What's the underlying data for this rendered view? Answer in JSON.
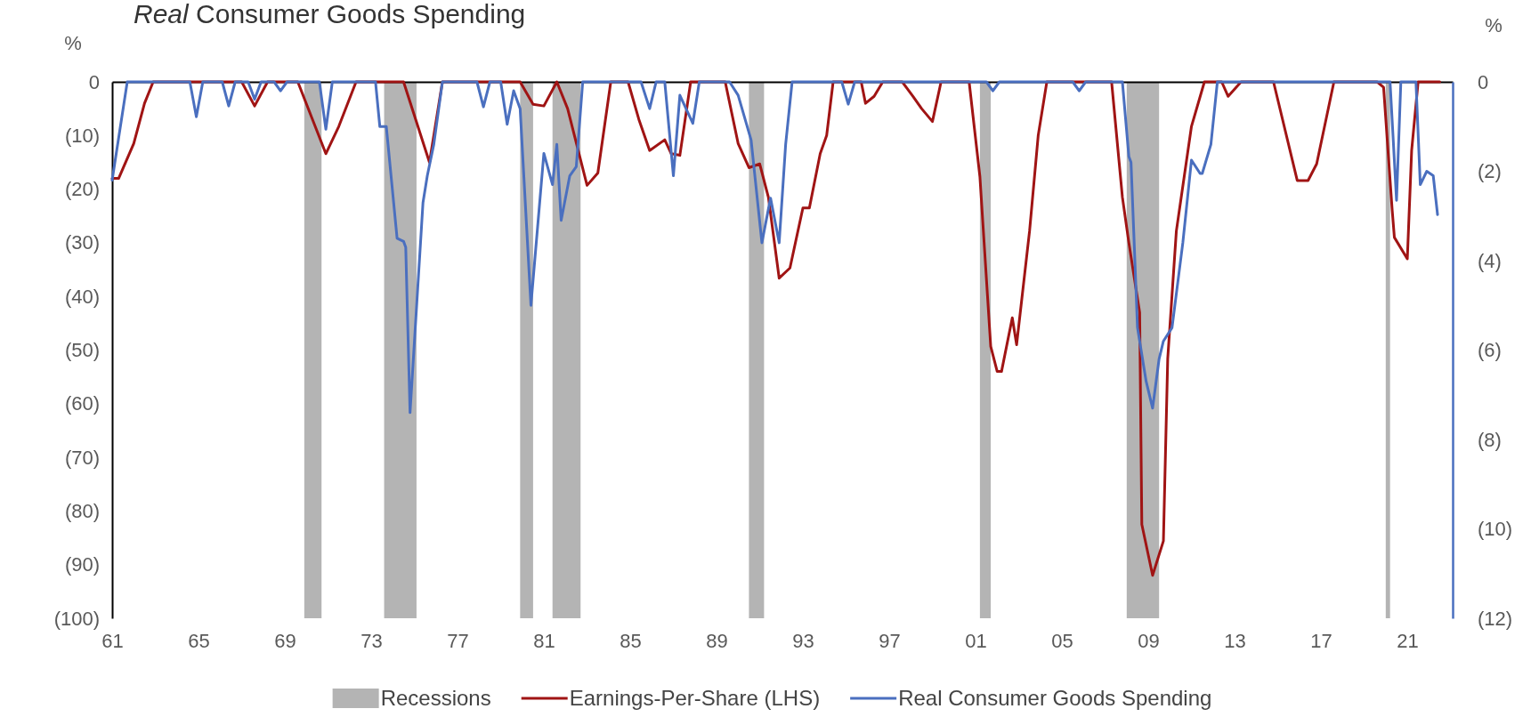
{
  "chart_data": {
    "type": "line",
    "title": "Real Consumer Goods Spending",
    "ylabel": "%",
    "y2label": "%",
    "xlim": [
      1961,
      2023.1
    ],
    "xticks": [
      {
        "value": 1961,
        "label": "61"
      },
      {
        "value": 1965,
        "label": "65"
      },
      {
        "value": 1969,
        "label": "69"
      },
      {
        "value": 1973,
        "label": "73"
      },
      {
        "value": 1977,
        "label": "77"
      },
      {
        "value": 1981,
        "label": "81"
      },
      {
        "value": 1985,
        "label": "85"
      },
      {
        "value": 1989,
        "label": "89"
      },
      {
        "value": 1993,
        "label": "93"
      },
      {
        "value": 1997,
        "label": "97"
      },
      {
        "value": 2001,
        "label": "01"
      },
      {
        "value": 2005,
        "label": "05"
      },
      {
        "value": 2009,
        "label": "09"
      },
      {
        "value": 2013,
        "label": "13"
      },
      {
        "value": 2017,
        "label": "17"
      },
      {
        "value": 2021,
        "label": "21"
      }
    ],
    "ylim": [
      -100,
      0
    ],
    "yticks": [
      {
        "value": -100,
        "label": "(100)"
      },
      {
        "value": -90,
        "label": "(90)"
      },
      {
        "value": -80,
        "label": "(80)"
      },
      {
        "value": -70,
        "label": "(70)"
      },
      {
        "value": -60,
        "label": "(60)"
      },
      {
        "value": -50,
        "label": "(50)"
      },
      {
        "value": -40,
        "label": "(40)"
      },
      {
        "value": -30,
        "label": "(30)"
      },
      {
        "value": -20,
        "label": "(20)"
      },
      {
        "value": -10,
        "label": "(10)"
      },
      0
    ],
    "y2lim": [
      -12,
      0
    ],
    "y2ticks": [
      {
        "value": -12,
        "label": "(12)"
      },
      {
        "value": -10,
        "label": "(10)"
      },
      {
        "value": -8,
        "label": "(8)"
      },
      {
        "value": -6,
        "label": "(6)"
      },
      {
        "value": -4,
        "label": "(4)"
      },
      {
        "value": -2,
        "label": "(2)"
      },
      0
    ],
    "bands": [
      {
        "axis": "x",
        "from": 1969.9,
        "to": 1970.7,
        "label": "Recessions",
        "color": "#b4b4b4"
      },
      {
        "axis": "x",
        "from": 1973.6,
        "to": 1975.1,
        "color": "#b4b4b4"
      },
      {
        "axis": "x",
        "from": 1979.9,
        "to": 1980.5,
        "color": "#b4b4b4"
      },
      {
        "axis": "x",
        "from": 1981.4,
        "to": 1982.7,
        "color": "#b4b4b4"
      },
      {
        "axis": "x",
        "from": 1990.5,
        "to": 1991.2,
        "color": "#b4b4b4"
      },
      {
        "axis": "x",
        "from": 2001.2,
        "to": 2001.7,
        "color": "#b4b4b4"
      },
      {
        "axis": "x",
        "from": 2008.0,
        "to": 2009.5,
        "color": "#b4b4b4"
      },
      {
        "axis": "x",
        "from": 2020.0,
        "to": 2020.2,
        "color": "#b4b4b4"
      }
    ],
    "legend": "bottom",
    "grid": false,
    "series": [
      {
        "name": "Earnings-Per-Share (LHS)",
        "color": "#a01414",
        "x": [
          1961.0,
          1961.3,
          1962.0,
          1962.5,
          1962.9,
          1967.0,
          1967.6,
          1968.2,
          1969.6,
          1970.9,
          1971.5,
          1972.3,
          1974.5,
          1975.7,
          1976.3,
          1979.9,
          1980.5,
          1981.0,
          1981.6,
          1982.1,
          1983.0,
          1983.5,
          1984.1,
          1984.9,
          1985.4,
          1985.9,
          1986.6,
          1986.9,
          1987.3,
          1987.8,
          1989.4,
          1990.0,
          1990.5,
          1991.0,
          1991.4,
          1991.9,
          1992.4,
          1993.0,
          1993.3,
          1993.8,
          1994.1,
          1994.4,
          1995.7,
          1995.9,
          1996.3,
          1996.7,
          1997.6,
          1998.1,
          1998.5,
          1999.0,
          1999.4,
          2000.7,
          2001.2,
          2001.7,
          2002.0,
          2002.2,
          2002.7,
          2002.9,
          2003.5,
          2003.9,
          2004.3,
          2007.3,
          2007.8,
          2008.1,
          2008.6,
          2008.7,
          2009.2,
          2009.7,
          2009.9,
          2010.3,
          2011.0,
          2011.6,
          2012.4,
          2012.7,
          2013.3,
          2014.8,
          2015.9,
          2016.4,
          2016.8,
          2017.6,
          2019.6,
          2019.9,
          2020.3,
          2020.4,
          2021.0,
          2021.2,
          2021.5,
          2022.5
        ],
        "values": [
          -18,
          -18,
          -11.5,
          -4,
          0,
          0,
          -4.5,
          0,
          0,
          -13.4,
          -8.3,
          0,
          0,
          -15,
          0,
          0,
          -4.2,
          -4.5,
          0,
          -5,
          -19.3,
          -17,
          0,
          0,
          -7,
          -12.8,
          -10.8,
          -13.4,
          -13.7,
          0,
          0,
          -11.5,
          -16,
          -15.3,
          -21.5,
          -36.6,
          -34.7,
          -23.5,
          -23.5,
          -13.4,
          -10,
          0,
          0,
          -4,
          -2.7,
          0,
          0,
          -2.7,
          -5,
          -7.4,
          0,
          0,
          -17.7,
          -49.3,
          -54,
          -54,
          -44,
          -49,
          -27.8,
          -10,
          0,
          0,
          -21.5,
          -30,
          -43,
          -82.5,
          -92,
          -85.6,
          -51.6,
          -27.8,
          -8.3,
          0,
          0,
          -2.7,
          0,
          0,
          -18.4,
          -18.4,
          -15.3,
          0,
          0,
          -1,
          -24,
          -29,
          -33,
          -12.8,
          0,
          0
        ]
      },
      {
        "name": "Real Consumer Goods Spending",
        "color": "#4a6fbf",
        "axis": "y2",
        "x": [
          1961.0,
          1961.7,
          1964.6,
          1964.9,
          1965.2,
          1966.1,
          1966.4,
          1966.7,
          1967.3,
          1967.6,
          1967.9,
          1968.5,
          1968.8,
          1969.1,
          1970.6,
          1970.9,
          1971.2,
          1973.2,
          1973.4,
          1973.7,
          1974.2,
          1974.5,
          1974.6,
          1974.8,
          1975.4,
          1975.6,
          1975.9,
          1976.3,
          1977.9,
          1978.2,
          1978.5,
          1979.0,
          1979.3,
          1979.6,
          1979.9,
          1980.4,
          1981.0,
          1981.4,
          1981.6,
          1981.8,
          1982.2,
          1982.5,
          1982.8,
          1985.5,
          1985.9,
          1986.2,
          1986.6,
          1987.0,
          1987.3,
          1987.9,
          1988.2,
          1989.6,
          1990.0,
          1990.6,
          1991.1,
          1991.5,
          1991.9,
          1992.2,
          1992.5,
          1994.8,
          1995.1,
          1995.4,
          2001.5,
          2001.8,
          2002.1,
          2005.5,
          2005.8,
          2006.1,
          2007.8,
          2008.1,
          2008.2,
          2008.5,
          2008.9,
          2009.2,
          2009.5,
          2009.7,
          2010.1,
          2010.6,
          2011.0,
          2011.4,
          2011.5,
          2011.9,
          2012.2,
          2020.2,
          2020.5,
          2020.7,
          2021.4,
          2021.6,
          2021.9,
          2022.2,
          2022.4
        ],
        "values": [
          -2.2,
          0,
          0,
          -0.78,
          0,
          0,
          -0.54,
          0,
          0,
          -0.39,
          0,
          0,
          -0.2,
          0,
          0,
          -1.06,
          0,
          0,
          -1,
          -1,
          -3.5,
          -3.57,
          -3.7,
          -7.4,
          -2.7,
          -2.1,
          -1.4,
          0,
          0,
          -0.56,
          0,
          0,
          -0.95,
          -0.2,
          -0.6,
          -5,
          -1.6,
          -2.3,
          -1.4,
          -3.1,
          -2.1,
          -1.9,
          0,
          0,
          -0.6,
          0,
          0,
          -2.1,
          -0.3,
          -0.93,
          0,
          0,
          -0.3,
          -1.3,
          -3.6,
          -2.6,
          -3.6,
          -1.4,
          0,
          0,
          -0.5,
          0,
          0,
          -0.2,
          0,
          0,
          -0.2,
          0,
          0,
          -1.67,
          -1.8,
          -5.5,
          -6.7,
          -7.3,
          -6.2,
          -5.8,
          -5.5,
          -3.6,
          -1.75,
          -2.05,
          -2.05,
          -1.4,
          0,
          0,
          -2.65,
          0,
          0,
          -2.3,
          -2,
          -2.1,
          -2.97
        ]
      }
    ]
  }
}
